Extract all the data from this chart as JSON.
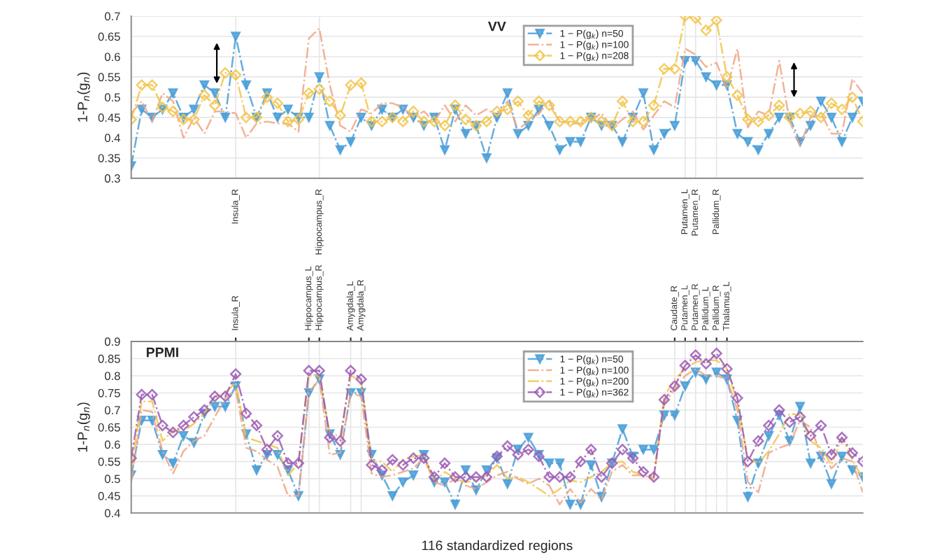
{
  "chart_data": [
    {
      "type": "line",
      "title": "VV",
      "ylabel": "1-P$_{n}$(g$_{n}$)",
      "categories": [
        null,
        null,
        null,
        null,
        null,
        null,
        null,
        null,
        null,
        null,
        "Insula_R",
        null,
        null,
        null,
        null,
        null,
        null,
        null,
        "Hippocampus_R",
        null,
        null,
        null,
        null,
        null,
        null,
        null,
        null,
        null,
        null,
        null,
        null,
        null,
        null,
        null,
        null,
        null,
        null,
        null,
        null,
        null,
        null,
        null,
        null,
        null,
        null,
        null,
        null,
        null,
        null,
        null,
        null,
        null,
        null,
        "Putamen_L",
        "Putamen_R",
        null,
        "Pallidum_R",
        null,
        null,
        null,
        null,
        null,
        null,
        null,
        null,
        null,
        null,
        null,
        null,
        null,
        null
      ],
      "ylim": [
        0.3,
        0.7
      ],
      "yticks": [
        0.3,
        0.35,
        0.4,
        0.45,
        0.5,
        0.55,
        0.6,
        0.65,
        0.7
      ],
      "grid": true,
      "legend": "top",
      "series": [
        {
          "name": "1 − P(g$_{k}$) n=50",
          "color": "#4a9fd8",
          "marker": "triangle",
          "line_style": "dashed",
          "values": [
            0.33,
            0.47,
            0.45,
            0.47,
            0.51,
            0.45,
            0.47,
            0.53,
            0.51,
            0.45,
            0.65,
            0.53,
            0.45,
            0.51,
            0.45,
            0.47,
            0.45,
            0.45,
            0.55,
            0.43,
            0.37,
            0.39,
            0.45,
            0.43,
            0.47,
            0.45,
            0.47,
            0.45,
            0.43,
            0.45,
            0.37,
            0.47,
            0.41,
            0.43,
            0.35,
            0.45,
            0.51,
            0.41,
            0.43,
            0.47,
            0.43,
            0.37,
            0.39,
            0.39,
            0.45,
            0.43,
            0.43,
            0.39,
            0.45,
            0.51,
            0.37,
            0.41,
            0.43,
            0.59,
            0.59,
            0.55,
            0.53,
            0.53,
            0.41,
            0.39,
            0.37,
            0.41,
            0.45,
            0.45,
            0.39,
            0.43,
            0.49,
            0.45,
            0.39,
            0.45,
            0.49
          ]
        },
        {
          "name": "1 − P(g$_{k}$) n=100",
          "color": "#f0a585",
          "marker": "none",
          "line_style": "dashed",
          "values": [
            0.46,
            0.49,
            0.44,
            0.51,
            0.49,
            0.4,
            0.45,
            0.41,
            0.465,
            0.465,
            0.46,
            0.4,
            0.435,
            0.44,
            0.435,
            0.435,
            0.415,
            0.645,
            0.67,
            0.53,
            0.43,
            0.415,
            0.47,
            0.46,
            0.485,
            0.485,
            0.475,
            0.45,
            0.465,
            0.44,
            0.48,
            0.44,
            0.48,
            0.455,
            0.47,
            0.455,
            0.49,
            0.42,
            0.44,
            0.46,
            0.49,
            0.44,
            0.435,
            0.435,
            0.445,
            0.46,
            0.425,
            0.445,
            0.465,
            0.42,
            0.455,
            0.49,
            0.475,
            0.62,
            0.605,
            0.575,
            0.585,
            0.52,
            0.62,
            0.425,
            0.465,
            0.455,
            0.59,
            0.44,
            0.38,
            0.45,
            0.46,
            0.41,
            0.41,
            0.545,
            0.51
          ]
        },
        {
          "name": "1 − P(g$_{k}$) n=208",
          "color": "#f2c44a",
          "marker": "diamond",
          "line_style": "dashed",
          "values": [
            0.445,
            0.53,
            0.53,
            0.475,
            0.465,
            0.445,
            0.445,
            0.505,
            0.48,
            0.56,
            0.555,
            0.45,
            0.45,
            0.5,
            0.485,
            0.44,
            0.445,
            0.51,
            0.52,
            0.49,
            0.455,
            0.53,
            0.535,
            0.44,
            0.44,
            0.45,
            0.44,
            0.465,
            0.44,
            0.44,
            0.43,
            0.48,
            0.445,
            0.43,
            0.44,
            0.465,
            0.47,
            0.49,
            0.455,
            0.49,
            0.48,
            0.44,
            0.44,
            0.44,
            0.45,
            0.44,
            0.43,
            0.49,
            0.44,
            0.44,
            0.48,
            0.57,
            0.57,
            0.7,
            0.695,
            0.665,
            0.69,
            0.55,
            0.505,
            0.445,
            0.44,
            0.455,
            0.48,
            0.45,
            0.46,
            0.465,
            0.45,
            0.485,
            0.47,
            0.5,
            0.44
          ]
        }
      ]
    },
    {
      "type": "line",
      "title": "PPMI",
      "ylabel": "1-P$_{n}$(g$_{n}$)",
      "xlabel": "116 standardized regions",
      "categories": [
        null,
        null,
        null,
        null,
        null,
        null,
        null,
        null,
        null,
        null,
        "Insula_R",
        null,
        null,
        null,
        null,
        null,
        null,
        "Hippocampus_L",
        "Hippocampus_R",
        null,
        null,
        "Amygdala_L",
        "Amygdala_R",
        null,
        null,
        null,
        null,
        null,
        null,
        null,
        null,
        null,
        null,
        null,
        null,
        null,
        null,
        null,
        null,
        null,
        null,
        null,
        null,
        null,
        null,
        null,
        null,
        null,
        null,
        null,
        null,
        null,
        "Caudate_R",
        "Putamen_L",
        "Putamen_R",
        "Pallidum_L",
        "Pallidum_R",
        "Thalamus_L",
        null,
        null,
        null,
        null,
        null,
        null,
        null,
        null,
        null,
        null,
        null,
        null,
        null
      ],
      "ylim": [
        0.4,
        0.9
      ],
      "yticks": [
        0.4,
        0.45,
        0.5,
        0.55,
        0.6,
        0.65,
        0.7,
        0.75,
        0.8,
        0.85,
        0.9
      ],
      "grid": true,
      "legend": "top",
      "series": [
        {
          "name": "1 − P(g$_{k}$) n=50",
          "color": "#4a9fd8",
          "marker": "triangle",
          "line_style": "dashed",
          "values": [
            0.51,
            0.67,
            0.67,
            0.57,
            0.545,
            0.625,
            0.605,
            0.69,
            0.71,
            0.71,
            0.77,
            0.63,
            0.525,
            0.57,
            0.57,
            0.525,
            0.45,
            0.75,
            0.79,
            0.63,
            0.57,
            0.75,
            0.75,
            0.57,
            0.51,
            0.45,
            0.49,
            0.51,
            0.57,
            0.49,
            0.49,
            0.425,
            0.525,
            0.467,
            0.525,
            0.56,
            0.485,
            0.585,
            0.62,
            0.57,
            0.545,
            0.545,
            0.425,
            0.425,
            0.54,
            0.447,
            0.545,
            0.645,
            0.565,
            0.585,
            0.585,
            0.685,
            0.685,
            0.77,
            0.81,
            0.79,
            0.81,
            0.79,
            0.67,
            0.447,
            0.545,
            0.625,
            0.685,
            0.61,
            0.71,
            0.545,
            0.565,
            0.485,
            0.565,
            0.525,
            0.505
          ]
        },
        {
          "name": "1 − P(g$_{k}$) n=100",
          "color": "#f0a585",
          "marker": "none",
          "line_style": "dashed",
          "values": [
            0.49,
            0.7,
            0.695,
            0.58,
            0.515,
            0.58,
            0.61,
            0.625,
            0.68,
            0.735,
            0.76,
            0.59,
            0.58,
            0.555,
            0.535,
            0.45,
            0.45,
            0.75,
            0.79,
            0.57,
            0.575,
            0.75,
            0.74,
            0.515,
            0.505,
            0.51,
            0.52,
            0.53,
            0.56,
            0.49,
            0.48,
            0.5,
            0.48,
            0.47,
            0.49,
            0.51,
            0.52,
            0.5,
            0.485,
            0.5,
            0.48,
            0.425,
            0.47,
            0.43,
            0.47,
            0.44,
            0.52,
            0.54,
            0.51,
            0.51,
            0.5,
            0.72,
            0.76,
            0.8,
            0.82,
            0.8,
            0.8,
            0.79,
            0.7,
            0.49,
            0.46,
            0.575,
            0.59,
            0.6,
            0.67,
            0.65,
            0.57,
            0.53,
            0.56,
            0.55,
            0.46
          ]
        },
        {
          "name": "1 − P(g$_{k}$) n=200",
          "color": "#f2c44a",
          "marker": "none",
          "line_style": "dashed",
          "values": [
            0.53,
            0.725,
            0.725,
            0.61,
            0.64,
            0.64,
            0.66,
            0.69,
            0.74,
            0.75,
            0.78,
            0.62,
            0.61,
            0.6,
            0.59,
            0.51,
            0.545,
            0.8,
            0.8,
            0.63,
            0.625,
            0.8,
            0.785,
            0.55,
            0.55,
            0.52,
            0.555,
            0.565,
            0.57,
            0.49,
            0.52,
            0.5,
            0.49,
            0.495,
            0.51,
            0.54,
            0.5,
            0.505,
            0.49,
            0.47,
            0.45,
            0.47,
            0.495,
            0.49,
            0.505,
            0.52,
            0.545,
            0.55,
            0.52,
            0.51,
            0.505,
            0.74,
            0.79,
            0.82,
            0.84,
            0.845,
            0.845,
            0.82,
            0.72,
            0.56,
            0.545,
            0.58,
            0.63,
            0.69,
            0.685,
            0.61,
            0.59,
            0.54,
            0.62,
            0.555,
            0.5
          ]
        },
        {
          "name": "1 − P(g$_{k}$) n=362",
          "color": "#9c5ab4",
          "marker": "diamond",
          "line_style": "dashed",
          "values": [
            0.56,
            0.745,
            0.745,
            0.655,
            0.635,
            0.655,
            0.68,
            0.7,
            0.74,
            0.74,
            0.805,
            0.69,
            0.655,
            0.585,
            0.625,
            0.545,
            0.545,
            0.815,
            0.815,
            0.62,
            0.61,
            0.815,
            0.79,
            0.54,
            0.525,
            0.555,
            0.54,
            0.56,
            0.56,
            0.505,
            0.545,
            0.505,
            0.505,
            0.505,
            0.505,
            0.565,
            0.595,
            0.57,
            0.585,
            0.565,
            0.505,
            0.505,
            0.505,
            0.55,
            0.585,
            0.505,
            0.545,
            0.585,
            0.56,
            0.52,
            0.505,
            0.73,
            0.77,
            0.83,
            0.86,
            0.835,
            0.865,
            0.82,
            0.735,
            0.55,
            0.61,
            0.655,
            0.7,
            0.665,
            0.68,
            0.625,
            0.655,
            0.57,
            0.62,
            0.575,
            0.55
          ]
        }
      ]
    }
  ]
}
